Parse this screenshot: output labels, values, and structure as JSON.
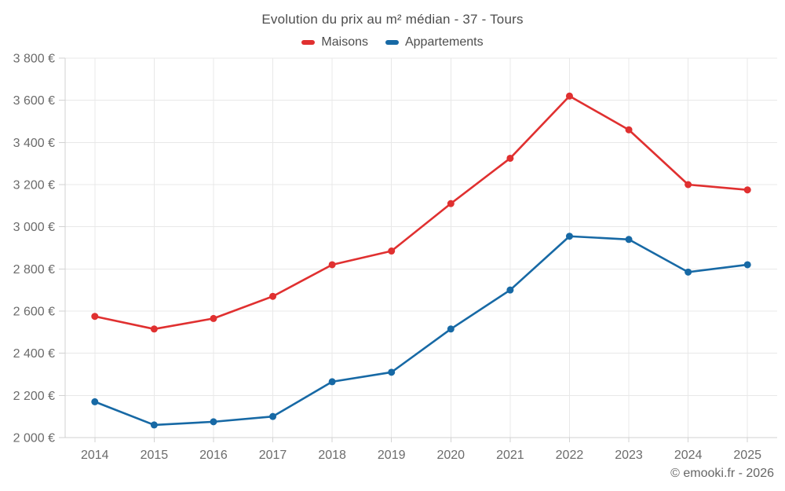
{
  "chart_data": {
    "type": "line",
    "title": "Evolution du prix au m² médian - 37 - Tours",
    "categories": [
      "2014",
      "2015",
      "2016",
      "2017",
      "2018",
      "2019",
      "2020",
      "2021",
      "2022",
      "2023",
      "2024",
      "2025"
    ],
    "series": [
      {
        "name": "Maisons",
        "color": "#e03030",
        "values": [
          2575,
          2515,
          2565,
          2670,
          2820,
          2885,
          3110,
          3325,
          3620,
          3460,
          3200,
          3175
        ]
      },
      {
        "name": "Appartements",
        "color": "#1769a5",
        "values": [
          2170,
          2060,
          2075,
          2100,
          2265,
          2310,
          2515,
          2700,
          2955,
          2940,
          2785,
          2820
        ]
      }
    ],
    "ylim": [
      2000,
      3800
    ],
    "ytick_step": 200,
    "y_tick_suffix": " €",
    "grid": true,
    "legend_position": "top",
    "colors": {
      "background": "#ffffff",
      "grid": "#e8e8e8",
      "axis": "#d2d2d2",
      "tick_label": "#6b6b6b",
      "title": "#4d4d4d"
    }
  },
  "footer": {
    "credit": "© emooki.fr - 2026"
  }
}
